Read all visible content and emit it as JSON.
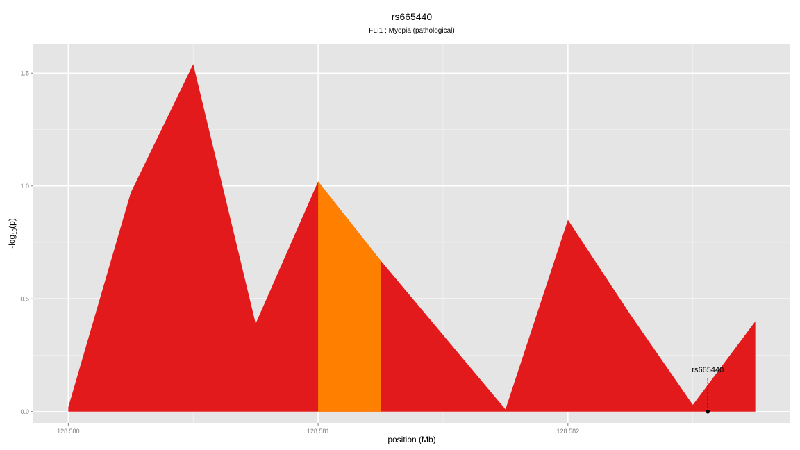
{
  "colors": {
    "panel_background": "#e5e5e5",
    "grid": "#ffffff",
    "region_fill": "#e31a1c",
    "highlight_fill": "#ff7f00",
    "marker": "#000000",
    "tick_text": "#7f7f7f"
  },
  "chart_data": {
    "type": "area",
    "title": "rs665440",
    "subtitle": "FLI1 ; Myopia (pathological)",
    "xlabel": "position (Mb)",
    "ylabel": "-log10(p)",
    "ylabel_main": "-log",
    "ylabel_sub": "10",
    "ylabel_tail": "(p)",
    "xlim": [
      128.57986,
      128.58289
    ],
    "ylim": [
      -0.05,
      1.63
    ],
    "x_ticks": [
      128.58,
      128.581,
      128.582
    ],
    "x_tick_labels": [
      "128.580",
      "128.581",
      "128.582"
    ],
    "y_ticks": [
      0.0,
      0.5,
      1.0,
      1.5
    ],
    "y_tick_labels": [
      "0.0",
      "0.5",
      "1.0",
      "1.5"
    ],
    "grid": true,
    "series": [
      {
        "x": [
          128.58,
          128.58025,
          128.5805,
          128.58075,
          128.581,
          128.58125,
          128.5815,
          128.58175,
          128.582,
          128.58225,
          128.5825,
          128.58275
        ],
        "y": [
          0.02,
          0.97,
          1.54,
          0.39,
          1.02,
          0.67,
          0.34,
          0.01,
          0.85,
          0.43,
          0.03,
          0.4
        ]
      }
    ],
    "highlight_region": {
      "x0": 128.581,
      "x1": 128.58125
    },
    "annotations": [
      {
        "label": "rs665440",
        "x": 128.58256,
        "y": 0.0
      }
    ]
  }
}
